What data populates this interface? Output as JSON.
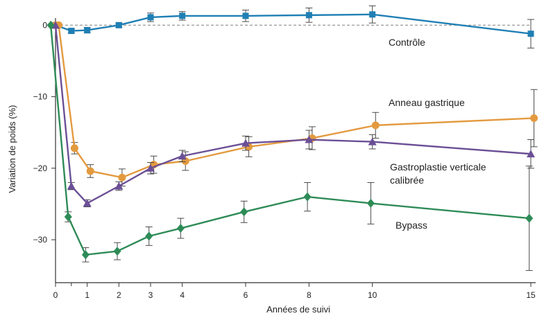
{
  "chart_data": {
    "type": "line",
    "title": "",
    "xlabel": "Années de suivi",
    "ylabel": "Variation de poids (%)",
    "xlim": [
      0,
      15
    ],
    "ylim": [
      -36,
      1
    ],
    "x_ticks": [
      0,
      1,
      2,
      3,
      4,
      6,
      8,
      10,
      15
    ],
    "y_ticks": [
      0,
      -10,
      -20,
      -30
    ],
    "reference_line": {
      "y": 0,
      "style": "dashed",
      "color": "#8c8c8c"
    },
    "grid": false,
    "series": [
      {
        "name": "Contrôle",
        "color": "#1f7fb4",
        "marker": "square",
        "points": [
          {
            "x": 0,
            "y": 0
          },
          {
            "x": 0.5,
            "y": -0.8,
            "err": 0.3
          },
          {
            "x": 1,
            "y": -0.7,
            "err": 0.4
          },
          {
            "x": 2,
            "y": 0,
            "err": 0.3
          },
          {
            "x": 3,
            "y": 1.1,
            "err": 0.6
          },
          {
            "x": 4,
            "y": 1.3,
            "err": 0.6
          },
          {
            "x": 6,
            "y": 1.3,
            "err": 0.8
          },
          {
            "x": 8,
            "y": 1.4,
            "err": 1.0
          },
          {
            "x": 10,
            "y": 1.5,
            "err": 1.2
          },
          {
            "x": 15,
            "y": -1.2,
            "err": 2.0
          }
        ]
      },
      {
        "name": "Anneau gastrique",
        "color": "#e39a3f",
        "marker": "circle",
        "points": [
          {
            "x": 0,
            "y": 0
          },
          {
            "x": 0.1,
            "y": 0
          },
          {
            "x": 0.6,
            "y": -17.2,
            "err": 0.8
          },
          {
            "x": 1.1,
            "y": -20.4,
            "err": 0.9
          },
          {
            "x": 2.1,
            "y": -21.3,
            "err": 1.2
          },
          {
            "x": 3.1,
            "y": -19.5,
            "err": 1.2
          },
          {
            "x": 4.1,
            "y": -19,
            "err": 1.3
          },
          {
            "x": 6.1,
            "y": -17,
            "err": 1.4
          },
          {
            "x": 8.1,
            "y": -15.8,
            "err": 1.6
          },
          {
            "x": 10.1,
            "y": -14,
            "err": 1.8
          },
          {
            "x": 15.1,
            "y": -13,
            "err": 4.0
          }
        ]
      },
      {
        "name": "Gastroplastie verticale calibrée",
        "color": "#6b4f96",
        "marker": "triangle",
        "points": [
          {
            "x": 0,
            "y": 0
          },
          {
            "x": 0.5,
            "y": -22.5,
            "err": 0.5
          },
          {
            "x": 1,
            "y": -24.9,
            "err": 0.5
          },
          {
            "x": 2,
            "y": -22.5,
            "err": 0.6
          },
          {
            "x": 3,
            "y": -20,
            "err": 0.8
          },
          {
            "x": 4,
            "y": -18.3,
            "err": 0.8
          },
          {
            "x": 6,
            "y": -16.5,
            "err": 1.0
          },
          {
            "x": 8,
            "y": -16,
            "err": 1.3
          },
          {
            "x": 10,
            "y": -16.3,
            "err": 1.0
          },
          {
            "x": 15,
            "y": -18,
            "err": 2.0
          }
        ]
      },
      {
        "name": "Bypass",
        "color": "#2e8b57",
        "marker": "diamond",
        "points": [
          {
            "x": -0.15,
            "y": 0
          },
          {
            "x": 0.4,
            "y": -26.8,
            "err": 0.7
          },
          {
            "x": 0.95,
            "y": -32.1,
            "err": 1.0
          },
          {
            "x": 1.95,
            "y": -31.6,
            "err": 1.2
          },
          {
            "x": 2.95,
            "y": -29.5,
            "err": 1.3
          },
          {
            "x": 3.95,
            "y": -28.4,
            "err": 1.4
          },
          {
            "x": 5.95,
            "y": -26.1,
            "err": 1.5
          },
          {
            "x": 7.95,
            "y": -24,
            "err": 2.0
          },
          {
            "x": 9.95,
            "y": -24.9,
            "err": 2.9
          },
          {
            "x": 14.95,
            "y": -27,
            "err": 7.3
          }
        ]
      }
    ]
  }
}
